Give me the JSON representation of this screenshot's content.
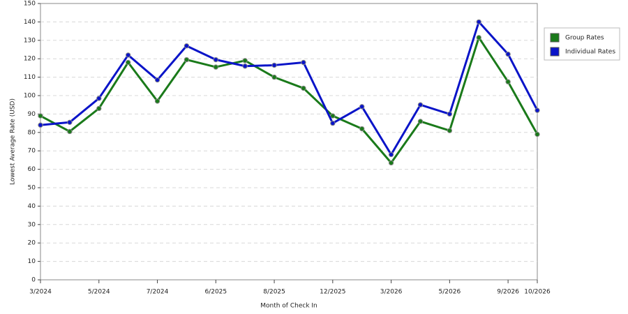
{
  "chart_data": {
    "type": "line",
    "x_label": "Month of Check In",
    "y_label": "Lowest Average Rate (USD)",
    "categories": [
      "3/2024",
      null,
      "5/2024",
      null,
      "7/2024",
      null,
      "6/2025",
      null,
      "8/2025",
      null,
      "12/2025",
      null,
      "3/2026",
      null,
      "5/2026",
      null,
      "9/2026",
      "10/2026"
    ],
    "series": [
      {
        "name": "Group Rates",
        "color": "#1a7a1a",
        "values": [
          89,
          80.5,
          93,
          118,
          97,
          119.5,
          115.5,
          119,
          110,
          104,
          89,
          82,
          63.5,
          86,
          81,
          131.5,
          107.5,
          79
        ]
      },
      {
        "name": "Individual Rates",
        "color": "#0a14c8",
        "values": [
          84,
          85.5,
          98.5,
          122,
          108.5,
          127,
          119.5,
          116,
          116.5,
          118,
          85,
          94,
          68,
          95,
          90,
          140,
          122.5,
          92
        ]
      }
    ],
    "ylim": [
      0,
      150
    ],
    "yticks": [
      0,
      10,
      20,
      30,
      40,
      50,
      60,
      70,
      80,
      90,
      100,
      110,
      120,
      130,
      140,
      150
    ],
    "grid": true,
    "legend": "right"
  }
}
